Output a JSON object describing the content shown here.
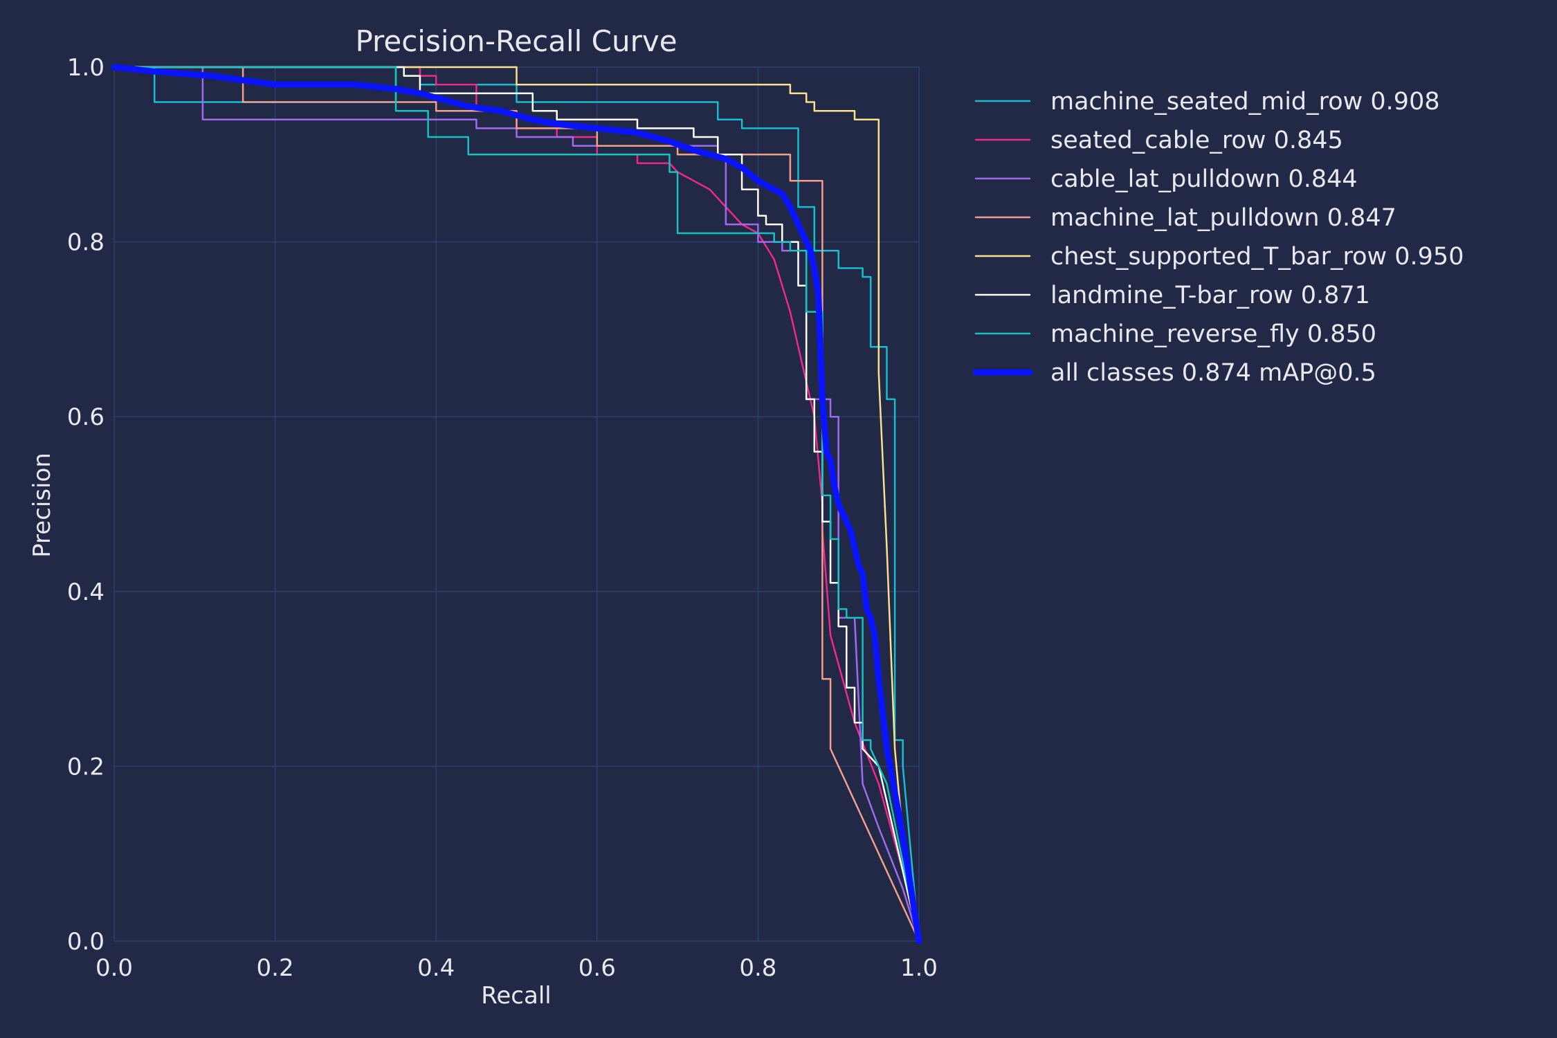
{
  "chart_data": {
    "type": "line",
    "title": "Precision-Recall Curve",
    "xlabel": "Recall",
    "ylabel": "Precision",
    "xlim": [
      0,
      1
    ],
    "ylim": [
      0,
      1
    ],
    "xticks": [
      "0.0",
      "0.2",
      "0.4",
      "0.6",
      "0.8",
      "1.0"
    ],
    "yticks": [
      "0.0",
      "0.2",
      "0.4",
      "0.6",
      "0.8",
      "1.0"
    ],
    "grid": true,
    "legend_position": "outside-right",
    "series": [
      {
        "name": "machine_seated_mid_row 0.908",
        "color": "#17becf",
        "width": 1,
        "x": [
          0,
          0.05,
          0.05,
          0.35,
          0.35,
          0.38,
          0.38,
          0.5,
          0.5,
          0.75,
          0.75,
          0.78,
          0.78,
          0.85,
          0.85,
          0.87,
          0.87,
          0.9,
          0.9,
          0.93,
          0.93,
          0.94,
          0.94,
          0.96,
          0.96,
          0.97,
          0.97,
          0.98,
          0.98,
          0.99,
          1.0
        ],
        "y": [
          1.0,
          1.0,
          0.96,
          0.96,
          1.0,
          1.0,
          0.98,
          0.98,
          0.96,
          0.96,
          0.94,
          0.94,
          0.93,
          0.93,
          0.84,
          0.84,
          0.79,
          0.79,
          0.77,
          0.77,
          0.76,
          0.76,
          0.68,
          0.68,
          0.62,
          0.62,
          0.23,
          0.23,
          0.2,
          0.1,
          0.0
        ]
      },
      {
        "name": "seated_cable_row 0.845",
        "color": "#f0288c",
        "width": 1,
        "x": [
          0,
          0.38,
          0.38,
          0.4,
          0.4,
          0.45,
          0.45,
          0.5,
          0.5,
          0.55,
          0.55,
          0.6,
          0.6,
          0.65,
          0.65,
          0.69,
          0.7,
          0.72,
          0.74,
          0.76,
          0.78,
          0.8,
          0.82,
          0.84,
          0.85,
          0.86,
          0.87,
          0.88,
          0.88,
          0.89,
          0.92,
          0.95,
          0.98,
          1.0
        ],
        "y": [
          1.0,
          1.0,
          0.99,
          0.99,
          0.98,
          0.98,
          0.95,
          0.95,
          0.93,
          0.93,
          0.92,
          0.92,
          0.9,
          0.9,
          0.89,
          0.89,
          0.88,
          0.87,
          0.86,
          0.84,
          0.82,
          0.81,
          0.78,
          0.72,
          0.68,
          0.64,
          0.6,
          0.5,
          0.47,
          0.35,
          0.25,
          0.18,
          0.08,
          0.0
        ]
      },
      {
        "name": "cable_lat_pulldown 0.844",
        "color": "#a06af0",
        "width": 1,
        "x": [
          0,
          0.11,
          0.11,
          0.3,
          0.45,
          0.45,
          0.5,
          0.5,
          0.57,
          0.57,
          0.75,
          0.75,
          0.76,
          0.76,
          0.8,
          0.8,
          0.83,
          0.83,
          0.86,
          0.86,
          0.89,
          0.89,
          0.9,
          0.9,
          0.92,
          0.93,
          0.95,
          0.98,
          1.0
        ],
        "y": [
          1.0,
          1.0,
          0.94,
          0.94,
          0.94,
          0.93,
          0.93,
          0.92,
          0.92,
          0.91,
          0.91,
          0.9,
          0.9,
          0.82,
          0.82,
          0.8,
          0.8,
          0.79,
          0.79,
          0.62,
          0.62,
          0.6,
          0.6,
          0.37,
          0.37,
          0.18,
          0.13,
          0.06,
          0.0
        ]
      },
      {
        "name": "machine_lat_pulldown 0.847",
        "color": "#f0a08c",
        "width": 1,
        "x": [
          0,
          0.16,
          0.16,
          0.4,
          0.4,
          0.5,
          0.5,
          0.6,
          0.6,
          0.7,
          0.7,
          0.84,
          0.84,
          0.88,
          0.88,
          0.89,
          0.89,
          1.0
        ],
        "y": [
          1.0,
          1.0,
          0.96,
          0.96,
          0.95,
          0.95,
          0.93,
          0.93,
          0.91,
          0.91,
          0.9,
          0.9,
          0.87,
          0.87,
          0.3,
          0.3,
          0.22,
          0.0
        ]
      },
      {
        "name": "chest_supported_T_bar_row 0.950",
        "color": "#fce08c",
        "width": 1,
        "x": [
          0,
          0.36,
          0.36,
          0.5,
          0.5,
          0.84,
          0.84,
          0.86,
          0.86,
          0.87,
          0.87,
          0.92,
          0.92,
          0.95,
          0.95,
          0.96,
          0.97,
          0.98,
          1.0
        ],
        "y": [
          1.0,
          1.0,
          1.0,
          1.0,
          0.98,
          0.98,
          0.97,
          0.97,
          0.96,
          0.96,
          0.95,
          0.95,
          0.94,
          0.94,
          0.65,
          0.45,
          0.22,
          0.12,
          0.0
        ]
      },
      {
        "name": "landmine_T-bar_row 0.871",
        "color": "#ffffff",
        "width": 1,
        "x": [
          0,
          0.36,
          0.36,
          0.38,
          0.38,
          0.52,
          0.52,
          0.55,
          0.55,
          0.65,
          0.65,
          0.72,
          0.72,
          0.75,
          0.75,
          0.78,
          0.78,
          0.8,
          0.8,
          0.81,
          0.81,
          0.83,
          0.83,
          0.85,
          0.85,
          0.86,
          0.86,
          0.87,
          0.87,
          0.88,
          0.88,
          0.89,
          0.89,
          0.9,
          0.9,
          0.91,
          0.91,
          0.92,
          0.92,
          0.93,
          0.93,
          0.95,
          0.98,
          1.0
        ],
        "y": [
          1.0,
          1.0,
          0.99,
          0.99,
          0.97,
          0.97,
          0.95,
          0.95,
          0.94,
          0.94,
          0.93,
          0.93,
          0.92,
          0.92,
          0.9,
          0.9,
          0.86,
          0.86,
          0.83,
          0.83,
          0.82,
          0.82,
          0.8,
          0.8,
          0.75,
          0.75,
          0.62,
          0.62,
          0.56,
          0.56,
          0.48,
          0.48,
          0.41,
          0.41,
          0.36,
          0.36,
          0.29,
          0.29,
          0.25,
          0.25,
          0.22,
          0.2,
          0.08,
          0.0
        ]
      },
      {
        "name": "machine_reverse_fly 0.850",
        "color": "#17c2c2",
        "width": 1,
        "x": [
          0,
          0.35,
          0.35,
          0.39,
          0.39,
          0.44,
          0.44,
          0.69,
          0.69,
          0.7,
          0.7,
          0.82,
          0.82,
          0.84,
          0.84,
          0.86,
          0.86,
          0.88,
          0.88,
          0.89,
          0.89,
          0.9,
          0.9,
          0.91,
          0.91,
          0.93,
          0.93,
          0.94,
          0.94,
          0.96,
          0.98,
          1.0
        ],
        "y": [
          1.0,
          1.0,
          0.95,
          0.95,
          0.92,
          0.92,
          0.9,
          0.9,
          0.88,
          0.88,
          0.81,
          0.81,
          0.8,
          0.8,
          0.79,
          0.79,
          0.72,
          0.72,
          0.51,
          0.51,
          0.46,
          0.46,
          0.38,
          0.38,
          0.37,
          0.37,
          0.23,
          0.23,
          0.22,
          0.18,
          0.09,
          0.0
        ]
      },
      {
        "name": "all classes 0.874 mAP@0.5",
        "color": "#0a14ff",
        "width": 3,
        "x": [
          0,
          0.05,
          0.12,
          0.16,
          0.2,
          0.3,
          0.35,
          0.38,
          0.4,
          0.44,
          0.48,
          0.52,
          0.55,
          0.6,
          0.65,
          0.69,
          0.72,
          0.74,
          0.76,
          0.78,
          0.8,
          0.82,
          0.83,
          0.84,
          0.85,
          0.86,
          0.865,
          0.87,
          0.875,
          0.88,
          0.885,
          0.89,
          0.895,
          0.9,
          0.905,
          0.91,
          0.915,
          0.92,
          0.925,
          0.93,
          0.935,
          0.94,
          0.945,
          0.95,
          0.96,
          0.97,
          0.98,
          0.99,
          1.0
        ],
        "y": [
          1.0,
          0.995,
          0.99,
          0.985,
          0.98,
          0.98,
          0.975,
          0.97,
          0.965,
          0.955,
          0.95,
          0.94,
          0.935,
          0.93,
          0.925,
          0.915,
          0.905,
          0.9,
          0.895,
          0.885,
          0.87,
          0.86,
          0.855,
          0.84,
          0.82,
          0.8,
          0.79,
          0.77,
          0.74,
          0.62,
          0.56,
          0.55,
          0.52,
          0.5,
          0.49,
          0.48,
          0.47,
          0.45,
          0.43,
          0.42,
          0.38,
          0.37,
          0.35,
          0.3,
          0.22,
          0.17,
          0.12,
          0.06,
          0.0
        ]
      }
    ]
  }
}
